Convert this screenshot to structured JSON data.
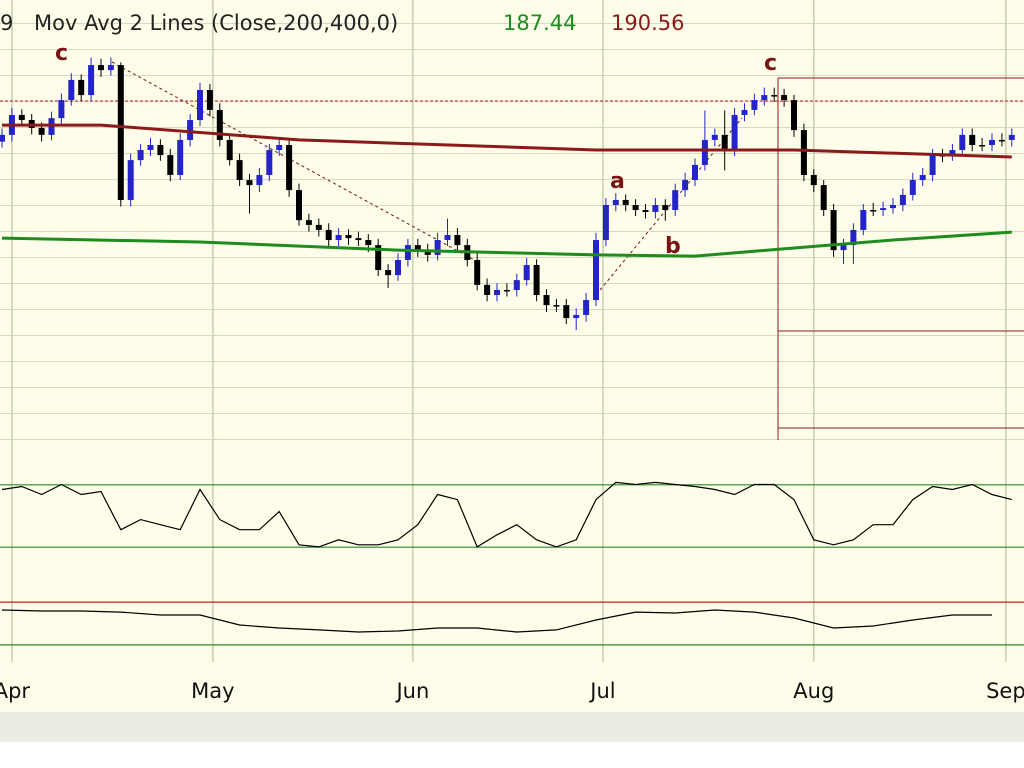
{
  "chart_data": {
    "type": "candlestick",
    "header_prefix": "9",
    "title": "Mov Avg 2 Lines (Close,200,400,0)",
    "ylim": [
      178.77,
      197.1
    ],
    "up_color": "#2424c8",
    "down_color": "#000000",
    "open": [
      191.2,
      191.48,
      192.31,
      192.1,
      191.77,
      191.48,
      192.18,
      192.93,
      193.77,
      193.14,
      194.39,
      194.18,
      194.39,
      188.77,
      190.43,
      190.85,
      191.06,
      190.64,
      189.81,
      191.27,
      192.1,
      193.35,
      192.52,
      191.27,
      190.43,
      189.6,
      189.39,
      189.81,
      190.85,
      191.06,
      189.18,
      187.93,
      187.73,
      187.52,
      187.1,
      187.31,
      187.18,
      187.1,
      186.89,
      185.85,
      185.64,
      186.27,
      186.89,
      186.68,
      186.48,
      187.1,
      187.31,
      186.89,
      186.27,
      185.23,
      184.81,
      185.02,
      185.02,
      185.43,
      186.06,
      184.81,
      184.39,
      184.39,
      183.85,
      183.98,
      184.6,
      187.1,
      188.56,
      188.77,
      188.56,
      188.35,
      188.27,
      188.56,
      188.35,
      189.18,
      189.6,
      190.23,
      191.27,
      191.48,
      190.85,
      192.31,
      192.52,
      192.93,
      193.14,
      193.14,
      192.93,
      191.68,
      189.81,
      189.39,
      188.35,
      186.68,
      186.89,
      187.52,
      188.35,
      188.35,
      188.43,
      188.56,
      188.98,
      189.6,
      189.81,
      190.64,
      190.64,
      190.85,
      191.48,
      191.06,
      191.06,
      191.27,
      191.27
    ],
    "high": [
      191.75,
      192.6,
      192.55,
      192.35,
      192.0,
      192.45,
      193.2,
      194.05,
      194.0,
      194.7,
      194.65,
      194.7,
      194.5,
      190.7,
      191.1,
      191.35,
      191.3,
      190.9,
      191.55,
      192.35,
      193.65,
      193.6,
      192.8,
      191.5,
      190.7,
      189.85,
      190.1,
      191.1,
      191.35,
      191.3,
      189.45,
      188.2,
      188.0,
      187.8,
      187.6,
      187.55,
      187.45,
      187.35,
      187.15,
      186.1,
      186.55,
      187.15,
      187.15,
      186.95,
      187.4,
      188.0,
      187.6,
      187.15,
      186.55,
      185.5,
      185.3,
      185.3,
      185.7,
      186.35,
      186.3,
      185.05,
      184.65,
      184.65,
      184.25,
      184.9,
      187.4,
      188.85,
      189.05,
      189.0,
      188.8,
      188.6,
      188.85,
      188.8,
      189.45,
      189.9,
      190.5,
      192.5,
      191.75,
      192.5,
      192.6,
      192.8,
      193.2,
      193.45,
      193.45,
      193.4,
      193.15,
      191.95,
      190.05,
      189.6,
      188.6,
      187.15,
      187.8,
      188.6,
      188.65,
      188.7,
      188.85,
      189.25,
      189.9,
      190.1,
      190.9,
      190.9,
      191.1,
      191.75,
      191.75,
      191.35,
      191.55,
      191.55,
      191.75
    ],
    "low": [
      190.95,
      191.2,
      191.85,
      191.5,
      191.2,
      191.25,
      191.9,
      192.7,
      192.9,
      192.9,
      193.9,
      193.95,
      188.5,
      188.5,
      190.2,
      190.6,
      190.4,
      189.55,
      189.6,
      191.0,
      191.85,
      192.25,
      191.0,
      190.2,
      189.35,
      188.2,
      189.1,
      189.55,
      190.6,
      188.9,
      187.7,
      187.45,
      187.25,
      186.85,
      186.85,
      186.9,
      186.85,
      186.6,
      185.6,
      185.1,
      185.4,
      186.0,
      186.4,
      186.2,
      186.25,
      186.85,
      186.6,
      186.0,
      185.0,
      184.55,
      184.55,
      184.75,
      184.75,
      185.2,
      184.55,
      184.1,
      184.1,
      183.6,
      183.35,
      183.7,
      184.35,
      186.85,
      188.3,
      188.3,
      188.1,
      188.0,
      188.0,
      187.9,
      188.1,
      188.9,
      189.35,
      190.0,
      191.0,
      190.0,
      190.6,
      192.05,
      192.3,
      192.7,
      192.85,
      192.65,
      191.4,
      189.55,
      189.1,
      188.1,
      186.4,
      186.1,
      186.1,
      187.3,
      188.1,
      188.1,
      188.2,
      188.3,
      188.75,
      189.35,
      189.55,
      190.35,
      190.4,
      190.6,
      190.8,
      190.8,
      190.8,
      191.0,
      191.0
    ],
    "close": [
      191.48,
      192.31,
      192.1,
      191.77,
      191.48,
      192.18,
      192.93,
      193.77,
      193.14,
      194.39,
      194.18,
      194.39,
      188.77,
      190.43,
      190.85,
      191.06,
      190.64,
      189.81,
      191.27,
      192.1,
      193.35,
      192.52,
      191.27,
      190.43,
      189.6,
      189.39,
      189.81,
      190.85,
      191.06,
      189.18,
      187.93,
      187.73,
      187.52,
      187.1,
      187.31,
      187.18,
      187.1,
      186.89,
      185.85,
      185.64,
      186.27,
      186.89,
      186.68,
      186.48,
      187.1,
      187.31,
      186.89,
      186.27,
      185.23,
      184.81,
      185.02,
      185.02,
      185.43,
      186.06,
      184.81,
      184.39,
      184.39,
      183.85,
      183.98,
      184.6,
      187.1,
      188.56,
      188.77,
      188.56,
      188.35,
      188.27,
      188.56,
      188.35,
      189.18,
      189.6,
      190.23,
      191.27,
      191.48,
      190.85,
      192.31,
      192.52,
      192.93,
      193.14,
      193.14,
      192.93,
      191.68,
      189.81,
      189.39,
      188.35,
      186.68,
      186.89,
      187.52,
      188.35,
      188.35,
      188.43,
      188.56,
      188.98,
      189.6,
      189.81,
      190.64,
      190.64,
      190.85,
      191.48,
      191.06,
      191.06,
      191.27,
      191.27,
      191.48
    ],
    "series": [
      {
        "color": "#1e8c1e",
        "x": [
          0,
          20,
          40,
          60,
          70,
          80,
          90,
          102
        ],
        "values": [
          187.18,
          187.02,
          186.68,
          186.48,
          186.43,
          186.77,
          187.1,
          187.43
        ],
        "last_value": 187.44
      },
      {
        "color": "#8b1a1a",
        "x": [
          0,
          10,
          30,
          60,
          80,
          102
        ],
        "values": [
          191.89,
          191.89,
          191.27,
          190.85,
          190.85,
          190.56
        ],
        "last_value": 190.56
      }
    ],
    "annotations": [
      "c",
      "c",
      "a",
      "b"
    ],
    "xticks": [
      {
        "value": 1,
        "label": "Apr"
      },
      {
        "value": 21.3,
        "label": "May"
      },
      {
        "value": 41.5,
        "label": "Jun"
      },
      {
        "value": 60.7,
        "label": "Jul"
      },
      {
        "value": 82,
        "label": "Aug"
      },
      {
        "value": 101.4,
        "label": "Sep"
      }
    ],
    "oscillators": [
      {
        "ylim": [
          0,
          100
        ],
        "levels": [
          80,
          20
        ],
        "level_color": "#2a8a2a",
        "line_color": "#000000",
        "values": [
          75.5,
          78.4,
          70.7,
          80.3,
          70.7,
          73.6,
          36.8,
          46.5,
          41.6,
          36.8,
          75.5,
          46.5,
          36.8,
          36.8,
          54.2,
          22.3,
          20.3,
          27.1,
          22.3,
          22.3,
          27.1,
          41.6,
          70.7,
          65.8,
          20.3,
          31.9,
          41.6,
          27.1,
          20.3,
          27.1,
          65.8,
          82.3,
          80.3,
          82.3,
          80.3,
          78.4,
          75.5,
          70.7,
          80.3,
          80.3,
          65.8,
          27.1,
          22.3,
          27.1,
          41.6,
          41.6,
          65.8,
          78.4,
          75.5,
          80.3,
          70.7,
          65.8
        ]
      },
      {
        "ylim": [
          0,
          100
        ],
        "levels": [
          70,
          30
        ],
        "level_colors": [
          "#c81e1e",
          "#2a8a2a"
        ],
        "line_color": "#000000",
        "values": [
          62.6,
          61.7,
          61.7,
          60.7,
          57.9,
          57.9,
          48.6,
          45.8,
          44.0,
          42.1,
          43.0,
          45.8,
          45.8,
          42.1,
          44.0,
          53.3,
          60.7,
          59.8,
          62.6,
          60.7,
          55.1,
          45.8,
          47.7,
          53.3,
          57.9,
          57.9
        ]
      }
    ]
  }
}
